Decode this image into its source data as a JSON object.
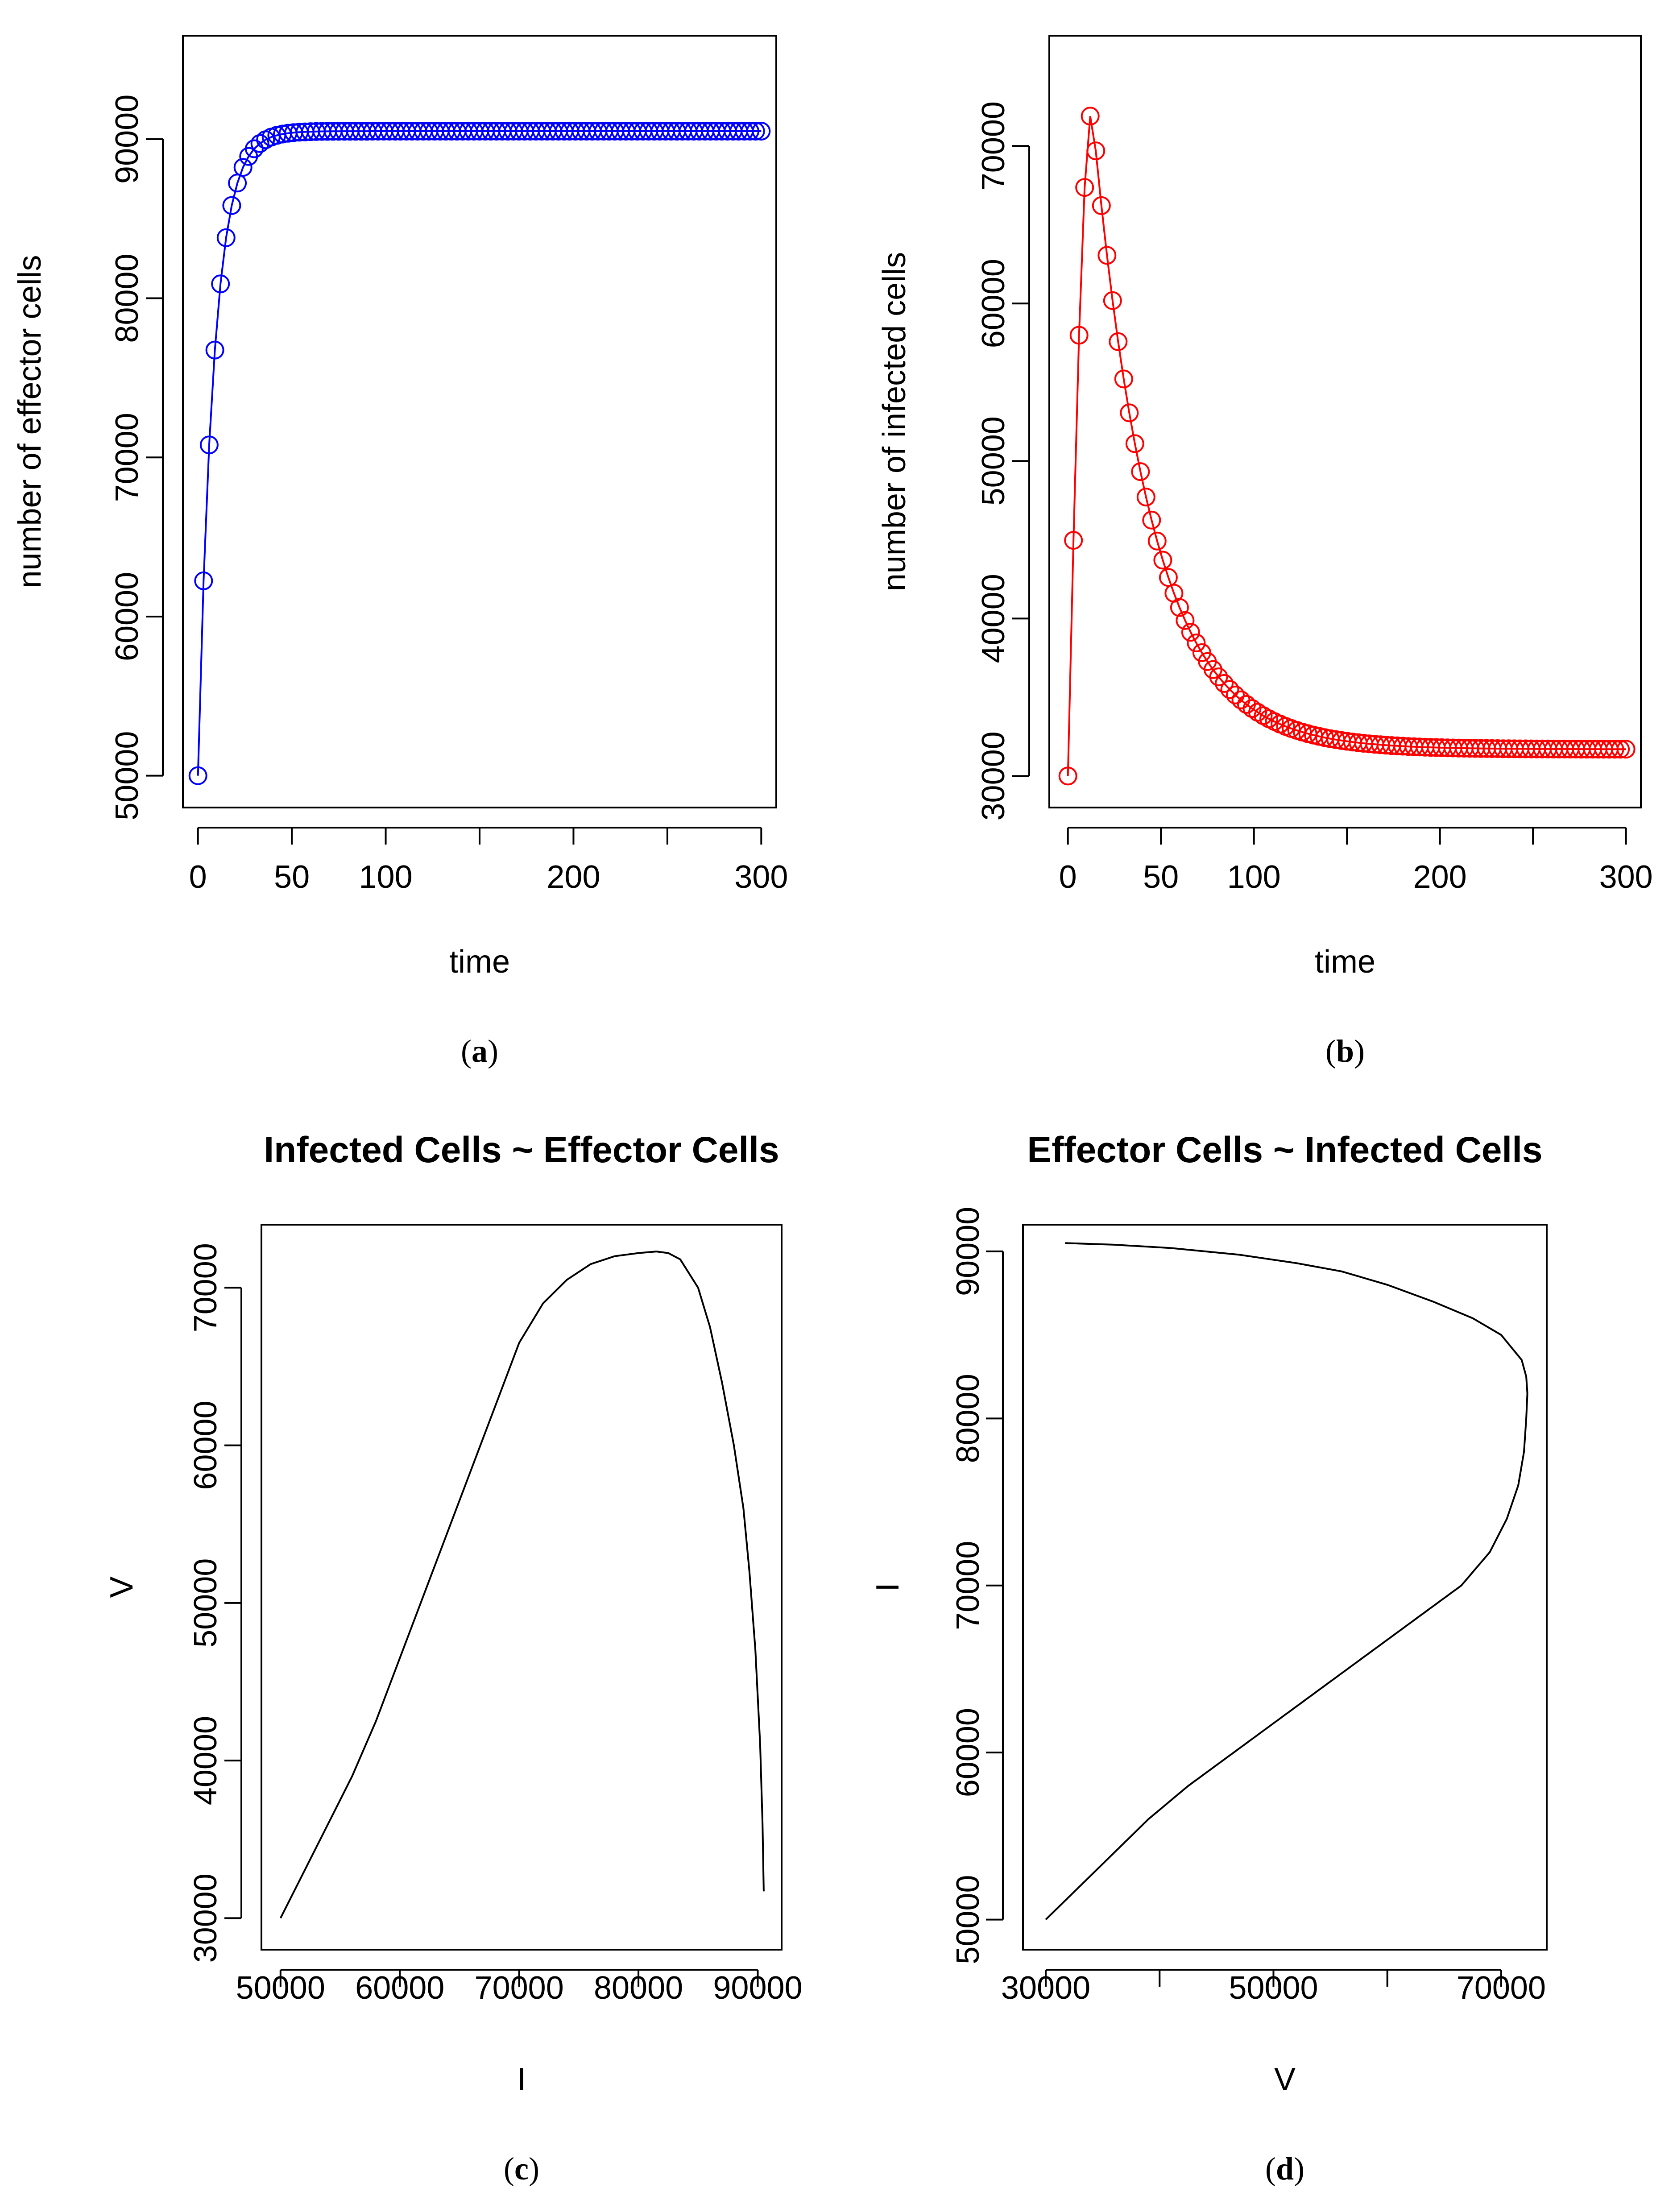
{
  "chart_data": [
    {
      "id": "a",
      "type": "line",
      "markers": "circle",
      "color": "#0000ff",
      "title": "",
      "xlabel": "time",
      "ylabel": "number of effector cells",
      "caption": "a",
      "xlim": [
        -8,
        308
      ],
      "ylim": [
        48000,
        96500
      ],
      "xticks": [
        0,
        50,
        100,
        150,
        200,
        250,
        300
      ],
      "xtick_labels": [
        "0",
        "50",
        "100",
        "",
        "200",
        "",
        "300"
      ],
      "yticks": [
        50000,
        60000,
        70000,
        80000,
        90000
      ],
      "ytick_labels": [
        "50000",
        "60000",
        "70000",
        "80000",
        "90000"
      ],
      "series": [
        {
          "name": "effector cells",
          "model": "saturating",
          "start": 50000,
          "plateau": 90500,
          "rate": 0.12,
          "t_end": 300,
          "n_points": 100
        }
      ]
    },
    {
      "id": "b",
      "type": "line",
      "markers": "circle",
      "color": "#ff0000",
      "title": "",
      "xlabel": "time",
      "ylabel": "number of infected cells",
      "caption": "b",
      "xlim": [
        -10,
        308
      ],
      "ylim": [
        28000,
        77000
      ],
      "xticks": [
        0,
        50,
        100,
        150,
        200,
        250,
        300
      ],
      "xtick_labels": [
        "0",
        "50",
        "100",
        "",
        "200",
        "",
        "300"
      ],
      "yticks": [
        30000,
        40000,
        50000,
        60000,
        70000
      ],
      "ytick_labels": [
        "30000",
        "40000",
        "50000",
        "60000",
        "70000"
      ],
      "series": [
        {
          "name": "infected cells",
          "model": "peak-decay",
          "start": 30000,
          "peak": 72200,
          "t_peak": 13,
          "floor": 31700,
          "decay_rate": 0.032,
          "t_end": 300,
          "n_points": 100
        }
      ]
    },
    {
      "id": "c",
      "type": "line",
      "color": "#000000",
      "title": "Infected Cells ~ Effector Cells",
      "xlabel": "I",
      "ylabel": "V",
      "caption": "c",
      "xlim": [
        48400,
        92000
      ],
      "ylim": [
        28000,
        74000
      ],
      "xticks": [
        50000,
        60000,
        70000,
        80000,
        90000
      ],
      "xtick_labels": [
        "50000",
        "60000",
        "70000",
        "80000",
        "90000"
      ],
      "yticks": [
        30000,
        40000,
        50000,
        60000,
        70000
      ],
      "ytick_labels": [
        "30000",
        "40000",
        "50000",
        "60000",
        "70000"
      ],
      "x": [
        50000,
        52000,
        54000,
        56000,
        58000,
        60000,
        62000,
        64000,
        66000,
        68000,
        70000,
        72000,
        74000,
        76000,
        78000,
        80000,
        81500,
        82500,
        83500,
        85000,
        86000,
        87000,
        88000,
        88800,
        89300,
        89800,
        90200,
        90400,
        90500
      ],
      "y": [
        30000,
        33000,
        36000,
        39000,
        42500,
        46500,
        50500,
        54500,
        58500,
        62500,
        66500,
        69000,
        70500,
        71500,
        72000,
        72200,
        72300,
        72200,
        71800,
        70000,
        67500,
        64000,
        60000,
        56000,
        52000,
        47000,
        41000,
        36000,
        31700
      ]
    },
    {
      "id": "d",
      "type": "line",
      "color": "#000000",
      "title": "Effector Cells ~ Infected Cells",
      "xlabel": "V",
      "ylabel": "I",
      "caption": "d",
      "xlim": [
        28000,
        74000
      ],
      "ylim": [
        48200,
        91600
      ],
      "xticks": [
        30000,
        40000,
        50000,
        60000,
        70000
      ],
      "xtick_labels": [
        "30000",
        "",
        "50000",
        "",
        "70000"
      ],
      "yticks": [
        50000,
        60000,
        70000,
        80000,
        90000
      ],
      "ytick_labels": [
        "50000",
        "60000",
        "70000",
        "80000",
        "90000"
      ],
      "x": [
        30000,
        33000,
        36000,
        39000,
        42500,
        46500,
        50500,
        54500,
        58500,
        62500,
        66500,
        69000,
        70500,
        71500,
        72000,
        72200,
        72300,
        72200,
        71800,
        70000,
        67500,
        64000,
        60000,
        56000,
        52000,
        47000,
        41000,
        36000,
        31700
      ],
      "y": [
        50000,
        52000,
        54000,
        56000,
        58000,
        60000,
        62000,
        64000,
        66000,
        68000,
        70000,
        72000,
        74000,
        76000,
        78000,
        80000,
        81500,
        82500,
        83500,
        85000,
        86000,
        87000,
        88000,
        88800,
        89300,
        89800,
        90200,
        90400,
        90500
      ]
    }
  ]
}
